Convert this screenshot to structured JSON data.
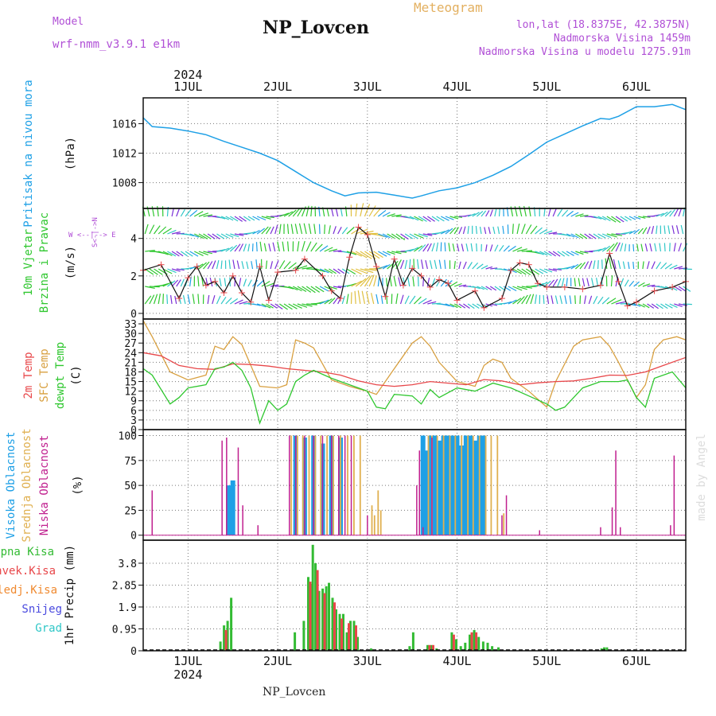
{
  "header": {
    "model_label": "Model",
    "model_name": "wrf-nmm_v3.9.1 e1km",
    "station": "NP_Lovcen",
    "product": "Meteogram",
    "lonlat": "lon,lat (18.8375E, 42.3875N)",
    "elev": "Nadmorska Visina 1459m",
    "elev_model": "Nadmorska Visina u modelu 1275.91m",
    "footer": "NP_Lovcen",
    "credit": "made by Angel"
  },
  "time_axis": {
    "year": "2024",
    "days": [
      "1JUL",
      "2JUL",
      "3JUL",
      "4JUL",
      "5JUL",
      "6JUL"
    ],
    "start_day": 0.5,
    "end_day": 6.55
  },
  "colors": {
    "pressure": "#1ea0e6",
    "temp2m": "#e8474a",
    "sfc": "#d8a040",
    "dewpt": "#2fc72f",
    "high": "#1ea0e6",
    "mid": "#e0b050",
    "low": "#c0208f",
    "total": "#33bb33",
    "conv": "#e8474a",
    "frozen": "#f08a30",
    "snow": "#4a4adf",
    "graupel": "#2fc7c7",
    "axis_purple": "#b04fd6"
  },
  "chart_data": [
    {
      "type": "line",
      "name": "pressure",
      "ylabel": "Pritisak na nivou mora",
      "unit": "(hPa)",
      "ylim": [
        1004.5,
        1019.5
      ],
      "yticks": [
        1008,
        1012,
        1016
      ],
      "ytick_labels": [
        "1008",
        "1012",
        "1016"
      ],
      "series": [
        {
          "name": "pressure",
          "x": [
            0.5,
            0.6,
            0.8,
            1.0,
            1.2,
            1.4,
            1.6,
            1.8,
            2.0,
            2.2,
            2.4,
            2.6,
            2.75,
            2.9,
            3.1,
            3.3,
            3.5,
            3.6,
            3.8,
            4.0,
            4.2,
            4.4,
            4.6,
            4.8,
            5.0,
            5.2,
            5.4,
            5.6,
            5.7,
            5.8,
            6.0,
            6.2,
            6.4,
            6.55
          ],
          "y": [
            1016.8,
            1015.6,
            1015.4,
            1015.0,
            1014.5,
            1013.6,
            1012.8,
            1012.0,
            1011.0,
            1009.5,
            1008.0,
            1006.9,
            1006.2,
            1006.6,
            1006.7,
            1006.3,
            1005.9,
            1006.2,
            1006.9,
            1007.3,
            1008.0,
            1009.0,
            1010.2,
            1011.8,
            1013.5,
            1014.6,
            1015.7,
            1016.7,
            1016.6,
            1017.0,
            1018.3,
            1018.3,
            1018.6,
            1017.9
          ]
        }
      ]
    },
    {
      "type": "line",
      "name": "wind",
      "ylabel": "10m Vjetar",
      "ylabel2": "Brzina i Pravac",
      "unit": "(m/s)",
      "compass": "W <--|--> E",
      "compass_v": "S<-|->N",
      "ylim": [
        -0.3,
        5.6
      ],
      "yticks": [
        0,
        2,
        4
      ],
      "ytick_labels": [
        "0",
        "2",
        "4"
      ],
      "series": [
        {
          "name": "wind",
          "x": [
            0.5,
            0.7,
            0.9,
            1.0,
            1.1,
            1.2,
            1.3,
            1.4,
            1.5,
            1.6,
            1.7,
            1.8,
            1.9,
            2.0,
            2.2,
            2.3,
            2.5,
            2.6,
            2.7,
            2.8,
            2.9,
            3.0,
            3.1,
            3.2,
            3.3,
            3.4,
            3.5,
            3.6,
            3.7,
            3.8,
            3.9,
            4.0,
            4.2,
            4.3,
            4.5,
            4.6,
            4.7,
            4.8,
            4.9,
            5.0,
            5.2,
            5.4,
            5.6,
            5.7,
            5.8,
            5.9,
            6.0,
            6.2,
            6.4,
            6.55
          ],
          "y": [
            2.3,
            2.6,
            0.8,
            1.9,
            2.5,
            1.5,
            1.7,
            1.1,
            2.0,
            1.1,
            0.6,
            2.5,
            0.7,
            2.2,
            2.3,
            2.9,
            2.0,
            1.2,
            0.8,
            3.0,
            4.6,
            4.2,
            2.5,
            0.9,
            2.9,
            1.5,
            2.4,
            2.0,
            1.4,
            1.8,
            1.6,
            0.7,
            1.2,
            0.3,
            0.8,
            2.3,
            2.7,
            2.6,
            1.6,
            1.4,
            1.4,
            1.3,
            1.5,
            3.2,
            1.7,
            0.4,
            0.6,
            1.2,
            1.4,
            1.7
          ]
        }
      ]
    },
    {
      "type": "line",
      "name": "temperature",
      "ylabel": "2m Temp",
      "ylabel2": "SFC Temp",
      "ylabel3": "dewpt Temp",
      "unit": "(C)",
      "ylim": [
        0,
        34.5
      ],
      "yticks": [
        0,
        3,
        6,
        9,
        12,
        15,
        18,
        21,
        24,
        27,
        30,
        33
      ],
      "ytick_labels": [
        "0",
        "3",
        "6",
        "9",
        "12",
        "15",
        "18",
        "21",
        "24",
        "27",
        "30",
        "33"
      ],
      "series": [
        {
          "name": "2m Temp",
          "x": [
            0.5,
            0.7,
            0.9,
            1.1,
            1.3,
            1.5,
            1.7,
            1.9,
            2.1,
            2.3,
            2.5,
            2.7,
            2.9,
            3.1,
            3.3,
            3.5,
            3.7,
            3.9,
            4.1,
            4.3,
            4.5,
            4.7,
            4.9,
            5.1,
            5.3,
            5.5,
            5.7,
            5.9,
            6.1,
            6.3,
            6.55
          ],
          "y": [
            24,
            23,
            20,
            19,
            18.8,
            20.5,
            20.3,
            19.8,
            19,
            18.5,
            18,
            17,
            15.2,
            14,
            13.5,
            14,
            15,
            14.5,
            14,
            15.6,
            15.2,
            14,
            14.6,
            15,
            15.2,
            16,
            17,
            16.9,
            18,
            20,
            22.5
          ]
        },
        {
          "name": "SFC Temp",
          "x": [
            0.5,
            0.6,
            0.8,
            1.0,
            1.2,
            1.3,
            1.4,
            1.5,
            1.6,
            1.7,
            1.8,
            2.0,
            2.1,
            2.2,
            2.3,
            2.4,
            2.6,
            2.8,
            3.0,
            3.1,
            3.3,
            3.5,
            3.6,
            3.7,
            3.8,
            4.0,
            4.2,
            4.3,
            4.4,
            4.5,
            4.6,
            4.8,
            5.0,
            5.1,
            5.3,
            5.4,
            5.6,
            5.7,
            5.8,
            6.0,
            6.1,
            6.2,
            6.3,
            6.45,
            6.55
          ],
          "y": [
            34,
            29,
            18,
            15.5,
            17,
            26,
            25,
            29,
            26.5,
            20,
            13.5,
            13,
            14,
            28,
            27,
            25.5,
            15.5,
            13.5,
            12,
            11,
            19,
            27,
            29,
            26,
            21,
            15,
            13.5,
            20,
            22,
            21,
            16,
            12,
            7,
            15,
            26,
            28,
            29,
            26,
            21,
            10,
            14,
            25,
            28,
            29,
            28
          ]
        },
        {
          "name": "dewpt Temp",
          "x": [
            0.5,
            0.6,
            0.8,
            0.9,
            1.0,
            1.2,
            1.3,
            1.4,
            1.5,
            1.6,
            1.7,
            1.8,
            1.9,
            2.0,
            2.1,
            2.2,
            2.3,
            2.4,
            2.6,
            2.8,
            3.0,
            3.1,
            3.2,
            3.3,
            3.5,
            3.6,
            3.7,
            3.8,
            4.0,
            4.2,
            4.4,
            4.6,
            4.8,
            5.0,
            5.1,
            5.2,
            5.4,
            5.6,
            5.8,
            5.9,
            6.0,
            6.1,
            6.2,
            6.4,
            6.55
          ],
          "y": [
            19,
            17,
            8,
            10,
            13,
            14,
            19,
            19.5,
            21,
            18.5,
            13,
            2,
            9,
            6,
            8,
            15,
            17,
            18.5,
            16,
            14,
            12,
            7,
            6.5,
            11,
            10.5,
            8,
            12.5,
            10,
            13,
            12,
            14.5,
            13,
            10.5,
            8,
            6,
            7,
            13,
            15,
            15,
            15.5,
            10,
            7,
            16,
            18,
            13
          ]
        }
      ]
    },
    {
      "type": "bar",
      "name": "cloud",
      "ylabel": "Visoka Oblacnost",
      "ylabel2": "Srednja Oblacnost",
      "ylabel3": "Niska Oblacnost",
      "unit": "(%)",
      "ylim": [
        -5,
        106
      ],
      "yticks": [
        0,
        25,
        50,
        75,
        100
      ],
      "ytick_labels": [
        "0",
        "25",
        "50",
        "75",
        "100"
      ],
      "series": [
        {
          "name": "Visoka Oblacnost",
          "x": [
            1.45,
            1.5,
            2.2,
            2.3,
            2.4,
            2.5,
            2.6,
            2.7,
            3.62,
            3.65,
            3.7,
            3.75,
            3.8,
            3.85,
            3.9,
            3.95,
            4.0,
            4.05,
            4.1,
            4.15,
            4.2,
            4.25,
            4.3
          ],
          "y": [
            50,
            55,
            100,
            98,
            100,
            92,
            100,
            98,
            100,
            85,
            100,
            100,
            95,
            100,
            100,
            100,
            100,
            90,
            100,
            100,
            95,
            100,
            100
          ]
        },
        {
          "name": "Srednja Oblacnost",
          "x": [
            2.15,
            2.22,
            2.28,
            2.35,
            2.42,
            2.48,
            2.55,
            2.62,
            2.7,
            2.78,
            2.85,
            2.92,
            3.05,
            3.08,
            3.12,
            3.15,
            3.68,
            3.72,
            3.78,
            3.85,
            3.92,
            3.98,
            4.05,
            4.12,
            4.18,
            4.25,
            4.32,
            4.38,
            4.45,
            4.52
          ],
          "y": [
            100,
            100,
            100,
            100,
            100,
            100,
            100,
            100,
            100,
            100,
            100,
            100,
            30,
            20,
            45,
            25,
            100,
            100,
            100,
            100,
            100,
            100,
            100,
            100,
            100,
            100,
            100,
            100,
            100,
            22
          ]
        },
        {
          "name": "Niska Oblacnost",
          "x": [
            0.6,
            1.38,
            1.43,
            1.56,
            1.61,
            1.78,
            2.13,
            2.2,
            2.3,
            2.4,
            2.5,
            2.6,
            2.68,
            2.75,
            2.82,
            3.0,
            3.55,
            3.58,
            3.62,
            3.72,
            4.5,
            4.55,
            4.92,
            5.6,
            5.73,
            5.77,
            5.82,
            6.38,
            6.42
          ],
          "y": [
            45,
            95,
            98,
            88,
            30,
            10,
            100,
            100,
            100,
            100,
            100,
            100,
            100,
            100,
            100,
            20,
            50,
            85,
            8,
            98,
            20,
            40,
            5,
            8,
            28,
            85,
            8,
            10,
            80
          ]
        }
      ]
    },
    {
      "type": "bar",
      "name": "precip",
      "ylabel": "1hr Precip",
      "unit": "(mm)",
      "ylim": [
        0,
        4.8
      ],
      "yticks": [
        0,
        0.95,
        1.9,
        2.85,
        3.8
      ],
      "ytick_labels": [
        "0",
        "0.95",
        "1.9",
        "2.85",
        "3.8"
      ],
      "legend": [
        "Ukupna Kisa",
        "Konvek.Kisa",
        "Zaledj.Kisa",
        "Snijeg",
        "Grad"
      ],
      "series": [
        {
          "name": "Ukupna Kisa",
          "x": [
            1.37,
            1.41,
            1.45,
            1.49,
            2.2,
            2.3,
            2.35,
            2.38,
            2.4,
            2.43,
            2.47,
            2.51,
            2.55,
            2.58,
            2.62,
            2.66,
            2.7,
            2.74,
            2.78,
            2.82,
            2.86,
            2.9,
            3.05,
            3.48,
            3.52,
            3.68,
            3.72,
            3.78,
            3.95,
            4.0,
            4.05,
            4.1,
            4.15,
            4.2,
            4.25,
            4.3,
            4.35,
            4.4,
            4.47,
            5.62,
            5.65,
            5.68
          ],
          "y": [
            0.4,
            1.1,
            1.3,
            2.3,
            0.8,
            1.3,
            3.2,
            2.9,
            4.6,
            3.8,
            2.6,
            2.7,
            2.8,
            2.95,
            2.3,
            1.8,
            1.6,
            1.6,
            0.8,
            1.3,
            1.3,
            0.6,
            0.1,
            0.2,
            0.8,
            0.25,
            0.25,
            0.1,
            0.8,
            0.5,
            0.2,
            0.35,
            0.7,
            0.9,
            0.6,
            0.4,
            0.35,
            0.2,
            0.15,
            0.1,
            0.15,
            0.15
          ]
        },
        {
          "name": "Konvek.Kisa",
          "x": [
            1.41,
            2.35,
            2.43,
            2.51,
            2.62,
            2.7,
            2.78,
            2.86,
            3.68,
            3.72,
            3.95,
            4.15,
            4.2
          ],
          "y": [
            0.9,
            3.0,
            3.5,
            2.5,
            2.1,
            1.4,
            1.2,
            1.1,
            0.25,
            0.25,
            0.7,
            0.8,
            0.8
          ]
        }
      ]
    }
  ]
}
